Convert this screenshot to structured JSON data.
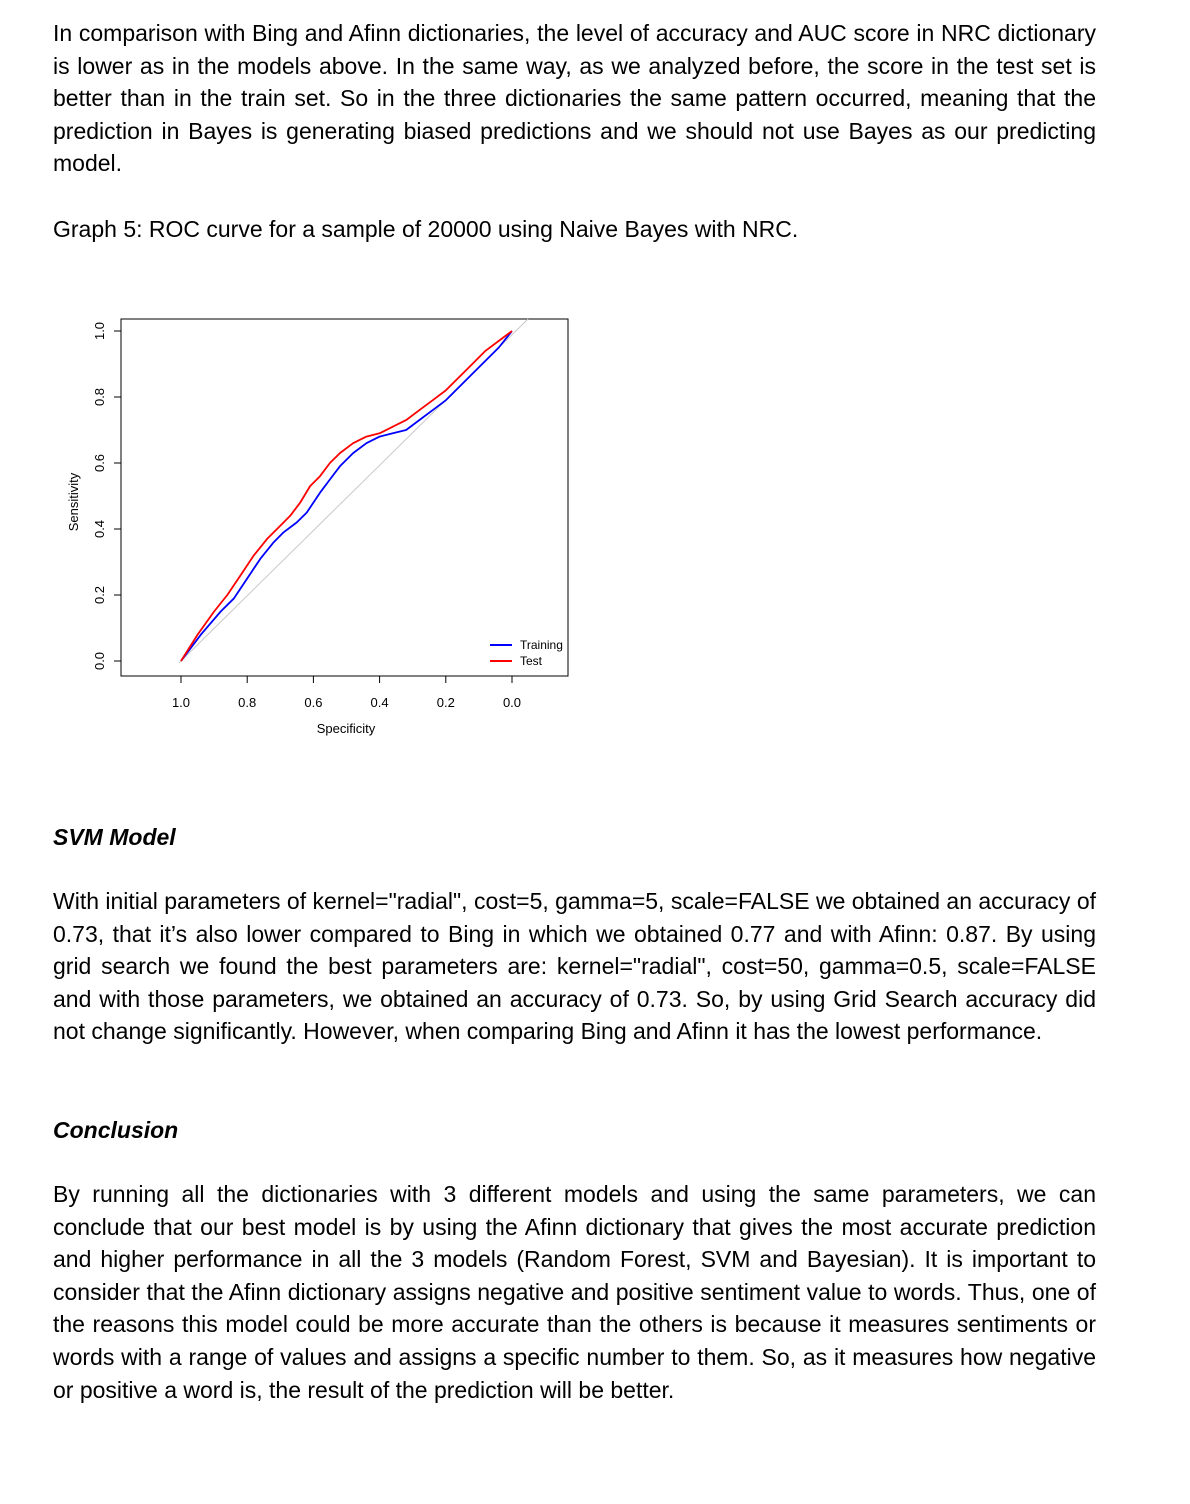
{
  "paragraphs": {
    "intro": "In comparison with Bing and Afinn dictionaries, the level of accuracy and AUC score in NRC dictionary is lower as in the models above. In the same way, as we analyzed before, the score in the test set is better than in the train set. So in the three dictionaries the same pattern occurred, meaning that the prediction in Bayes is generating biased predictions and we should not use Bayes as our predicting model.",
    "svm": "With initial parameters of kernel=\"radial\", cost=5, gamma=5, scale=FALSE we obtained an accuracy of 0.73, that it’s also lower compared to Bing in which we obtained 0.77 and with Afinn: 0.87. By using grid search we found the best parameters are: kernel=\"radial\", cost=50, gamma=0.5, scale=FALSE and with those parameters, we obtained an accuracy of 0.73. So, by using Grid Search accuracy did not change significantly. However, when comparing Bing and Afinn it has the lowest performance.",
    "conclusion": "By running all the dictionaries with 3 different models and using the same parameters, we can conclude that our best model is by using the Afinn dictionary that gives the most accurate prediction and higher performance in all the 3 models (Random Forest, SVM and Bayesian). It is important to consider that the Afinn dictionary assigns negative and positive sentiment value to words. Thus, one of the reasons this model could be more accurate than the others is because it measures sentiments or words with a range of values and assigns a specific number to them. So, as it measures how negative or positive a word is, the result of the prediction will be better."
  },
  "caption": "Graph 5: ROC curve for a sample of 20000 using Naive Bayes with NRC.",
  "headings": {
    "svm": "SVM Model",
    "conclusion": "Conclusion"
  },
  "chart_data": {
    "type": "line",
    "title": "",
    "xlabel": "Specificity",
    "ylabel": "Sensitivity",
    "xlim": [
      1.0,
      0.0
    ],
    "ylim": [
      0.0,
      1.0
    ],
    "x_reversed": true,
    "x_ticks": [
      "1.0",
      "0.8",
      "0.6",
      "0.4",
      "0.2",
      "0.0"
    ],
    "y_ticks": [
      "0.0",
      "0.2",
      "0.4",
      "0.6",
      "0.8",
      "1.0"
    ],
    "grid": false,
    "legend_position": "bottom-right",
    "reference_line": {
      "from": [
        1.0,
        0.0
      ],
      "to": [
        0.0,
        1.0
      ],
      "color": "#c8c8c8"
    },
    "series": [
      {
        "name": "Training",
        "color": "#0000ff",
        "x": [
          1.0,
          0.94,
          0.88,
          0.84,
          0.8,
          0.76,
          0.72,
          0.69,
          0.65,
          0.62,
          0.58,
          0.55,
          0.52,
          0.48,
          0.44,
          0.4,
          0.36,
          0.32,
          0.28,
          0.24,
          0.2,
          0.16,
          0.12,
          0.08,
          0.04,
          0.0
        ],
        "y": [
          0.0,
          0.08,
          0.15,
          0.19,
          0.25,
          0.31,
          0.36,
          0.39,
          0.42,
          0.45,
          0.51,
          0.55,
          0.59,
          0.63,
          0.66,
          0.68,
          0.69,
          0.7,
          0.73,
          0.76,
          0.79,
          0.83,
          0.87,
          0.91,
          0.95,
          1.0
        ]
      },
      {
        "name": "Test",
        "color": "#ff0000",
        "x": [
          1.0,
          0.95,
          0.9,
          0.86,
          0.82,
          0.78,
          0.74,
          0.7,
          0.67,
          0.64,
          0.61,
          0.58,
          0.55,
          0.52,
          0.48,
          0.44,
          0.4,
          0.36,
          0.32,
          0.28,
          0.24,
          0.2,
          0.16,
          0.12,
          0.08,
          0.04,
          0.0
        ],
        "y": [
          0.0,
          0.08,
          0.15,
          0.2,
          0.26,
          0.32,
          0.37,
          0.41,
          0.44,
          0.48,
          0.53,
          0.56,
          0.6,
          0.63,
          0.66,
          0.68,
          0.69,
          0.71,
          0.73,
          0.76,
          0.79,
          0.82,
          0.86,
          0.9,
          0.94,
          0.97,
          1.0
        ]
      }
    ]
  }
}
